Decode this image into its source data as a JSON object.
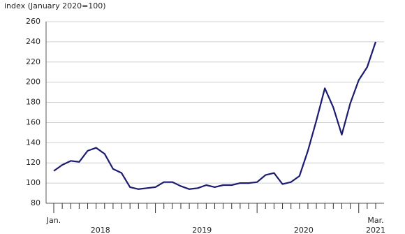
{
  "chart_data": {
    "type": "line",
    "y_axis_label": "index (January 2020=100)",
    "categories": [
      "Jan.",
      null,
      null,
      null,
      null,
      null,
      null,
      null,
      null,
      null,
      null,
      null,
      null,
      null,
      null,
      null,
      null,
      null,
      null,
      null,
      null,
      null,
      null,
      null,
      null,
      null,
      null,
      null,
      null,
      null,
      null,
      null,
      null,
      null,
      null,
      null,
      null,
      null,
      "Mar."
    ],
    "x_groups": [
      "2018",
      "2019",
      "2020",
      "2021"
    ],
    "values": [
      112,
      118,
      122,
      121,
      132,
      135,
      129,
      114,
      110,
      96,
      94,
      95,
      96,
      101,
      101,
      97,
      94,
      95,
      98,
      96,
      98,
      98,
      100,
      100,
      101,
      108,
      110,
      99,
      101,
      107,
      132,
      162,
      194,
      175,
      148,
      179,
      202,
      215,
      240
    ],
    "color": "#1b1b6f",
    "ylim": [
      80,
      260
    ],
    "yticks": [
      80,
      100,
      120,
      140,
      160,
      180,
      200,
      220,
      240,
      260
    ],
    "grid": true
  }
}
